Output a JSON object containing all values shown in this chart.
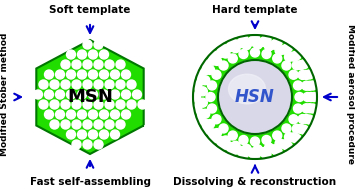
{
  "bg_color": "#ffffff",
  "arrow_color": "#0000cc",
  "green_fill": "#22dd00",
  "white_dot_color": "#ffffff",
  "inner_gray": "#d8d8e8",
  "msn_text": "MSN",
  "hsn_text": "HSN",
  "msn_text_color": "#000000",
  "hsn_text_color": "#3355cc",
  "soft_template_label": "Soft template",
  "hard_template_label": "Hard template",
  "left_side_label": "Modified Stöber method",
  "right_side_label": "Modified aerosol procedure",
  "bottom_left_label": "Fast self-assembling",
  "bottom_right_label": "Dissolving & reconstruction",
  "fig_width": 3.55,
  "fig_height": 1.89,
  "dpi": 100
}
